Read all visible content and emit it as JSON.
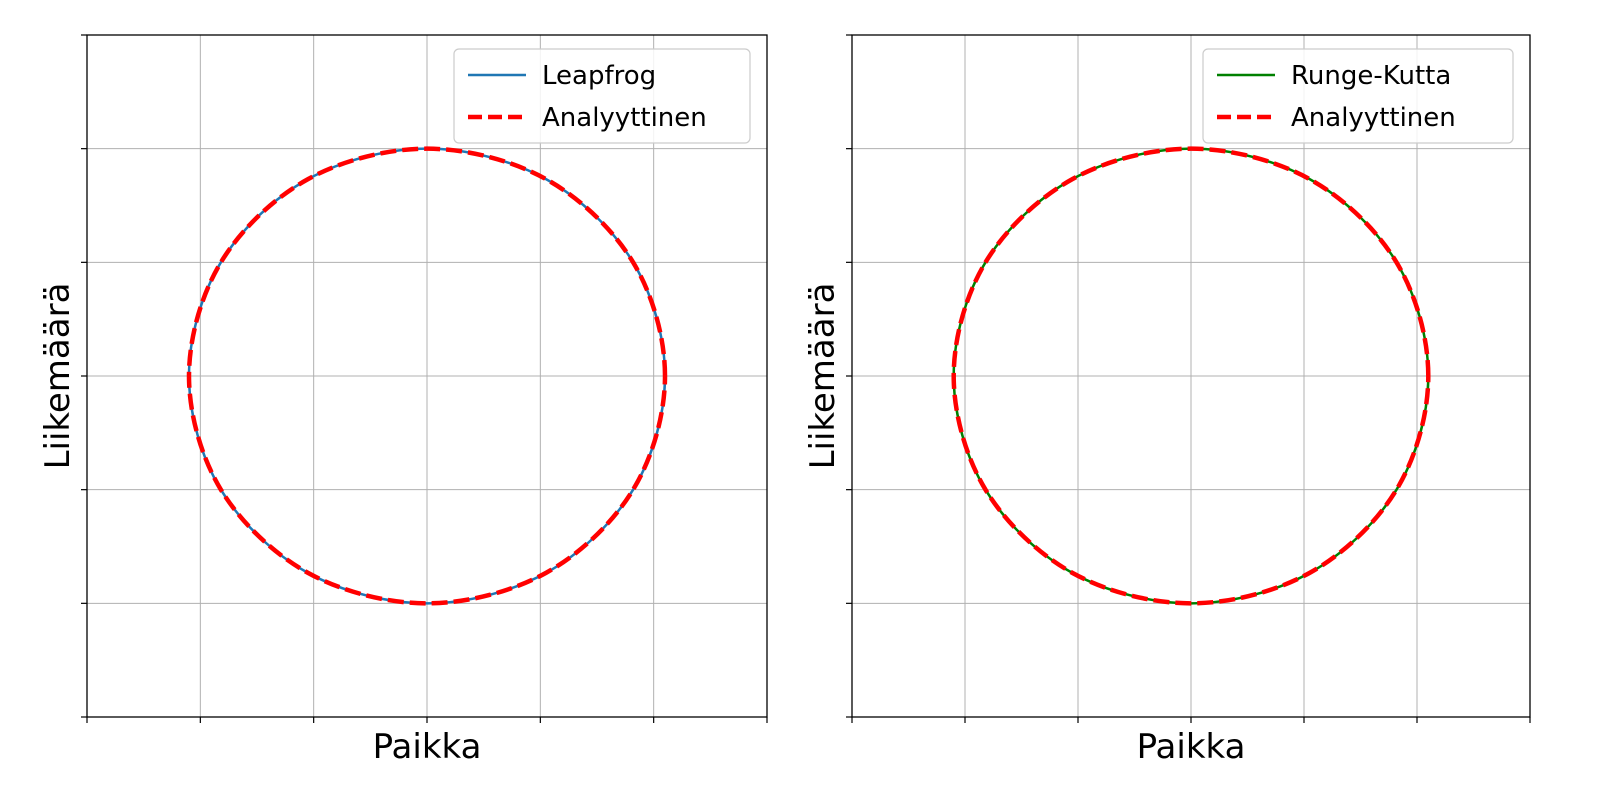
{
  "chart_data": [
    {
      "type": "line",
      "title": "",
      "xlabel": "Paikka",
      "ylabel": "Liikemäärä",
      "xlim": [
        -1.5,
        1.5
      ],
      "ylim": [
        -1.5,
        1.5
      ],
      "x_ticks": [
        -1.5,
        -1.0,
        -0.5,
        0.0,
        0.5,
        1.0,
        1.5
      ],
      "y_ticks": [
        -1.5,
        -1.0,
        -0.5,
        0.0,
        0.5,
        1.0,
        1.5
      ],
      "tick_labels_visible": false,
      "grid": true,
      "legend_position": "upper right",
      "aspect": "equal",
      "series": [
        {
          "name": "Leapfrog",
          "style": "solid",
          "color": "#1f77b4",
          "x": [
            1.05,
            0.9093,
            0.525,
            0.0,
            -0.525,
            -0.9093,
            -1.05,
            -0.9093,
            -0.525,
            0.0,
            0.525,
            0.9093,
            1.05
          ],
          "y": [
            0.0,
            0.5,
            0.866,
            1.0,
            0.866,
            0.5,
            0.0,
            -0.5,
            -0.866,
            -1.0,
            -0.866,
            -0.5,
            0.0
          ]
        },
        {
          "name": "Analyyttinen",
          "style": "dashed",
          "color": "#ff0000",
          "x": [
            1.05,
            0.9093,
            0.525,
            0.0,
            -0.525,
            -0.9093,
            -1.05,
            -0.9093,
            -0.525,
            0.0,
            0.525,
            0.9093,
            1.05
          ],
          "y": [
            0.0,
            0.5,
            0.866,
            1.0,
            0.866,
            0.5,
            0.0,
            -0.5,
            -0.866,
            -1.0,
            -0.866,
            -0.5,
            0.0
          ]
        }
      ]
    },
    {
      "type": "line",
      "title": "",
      "xlabel": "Paikka",
      "ylabel": "Liikemäärä",
      "xlim": [
        -1.5,
        1.5
      ],
      "ylim": [
        -1.5,
        1.5
      ],
      "x_ticks": [
        -1.5,
        -1.0,
        -0.5,
        0.0,
        0.5,
        1.0,
        1.5
      ],
      "y_ticks": [
        -1.5,
        -1.0,
        -0.5,
        0.0,
        0.5,
        1.0,
        1.5
      ],
      "tick_labels_visible": false,
      "grid": true,
      "legend_position": "upper right",
      "aspect": "equal",
      "series": [
        {
          "name": "Runge-Kutta",
          "style": "solid",
          "color": "#008000",
          "x": [
            1.05,
            0.9093,
            0.525,
            0.0,
            -0.525,
            -0.9093,
            -1.05,
            -0.9093,
            -0.525,
            0.0,
            0.525,
            0.9093,
            1.05
          ],
          "y": [
            0.0,
            0.5,
            0.866,
            1.0,
            0.866,
            0.5,
            0.0,
            -0.5,
            -0.866,
            -1.0,
            -0.866,
            -0.5,
            0.0
          ]
        },
        {
          "name": "Analyyttinen",
          "style": "dashed",
          "color": "#ff0000",
          "x": [
            1.05,
            0.9093,
            0.525,
            0.0,
            -0.525,
            -0.9093,
            -1.05,
            -0.9093,
            -0.525,
            0.0,
            0.525,
            0.9093,
            1.05
          ],
          "y": [
            0.0,
            0.5,
            0.866,
            1.0,
            0.866,
            0.5,
            0.0,
            -0.5,
            -0.866,
            -1.0,
            -0.866,
            -0.5,
            0.0
          ]
        }
      ]
    }
  ]
}
